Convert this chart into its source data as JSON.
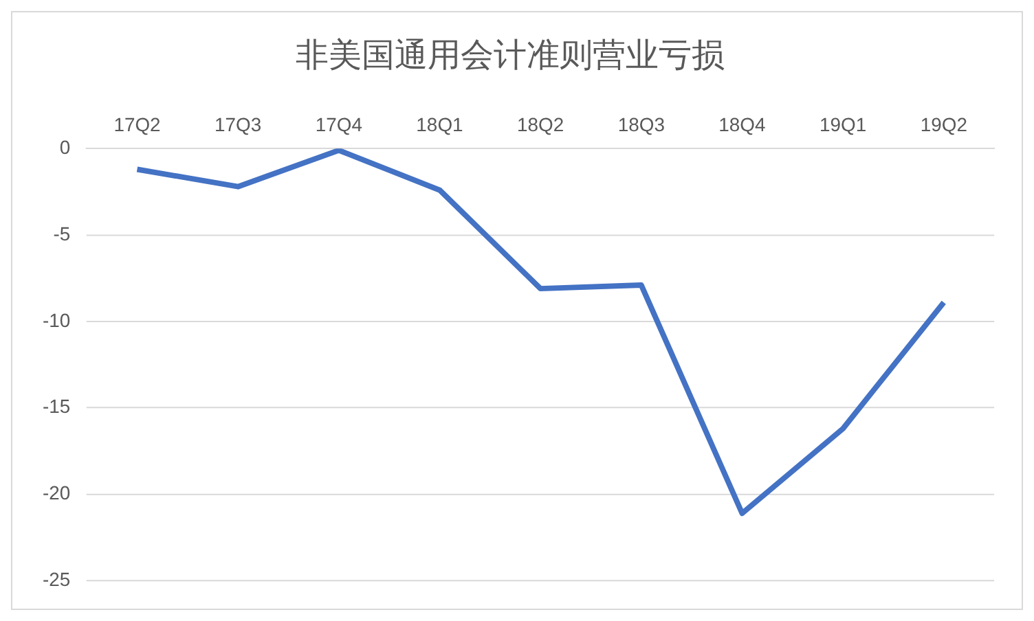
{
  "chart_data": {
    "type": "line",
    "title": "非美国通用会计准则营业亏损",
    "categories": [
      "17Q2",
      "17Q3",
      "17Q4",
      "18Q1",
      "18Q2",
      "18Q3",
      "18Q4",
      "19Q1",
      "19Q2"
    ],
    "series": [
      {
        "color": "#4472c4",
        "values": [
          -1.2,
          -2.2,
          -0.1,
          -2.4,
          -8.1,
          -7.9,
          -21.1,
          -16.2,
          -8.9
        ]
      }
    ],
    "ylim": [
      -25,
      0
    ],
    "yticks": [
      -25,
      -20,
      -15,
      -10,
      -5,
      0
    ],
    "grid": "y",
    "legend": false,
    "marker": "none",
    "line_style": "solid"
  }
}
